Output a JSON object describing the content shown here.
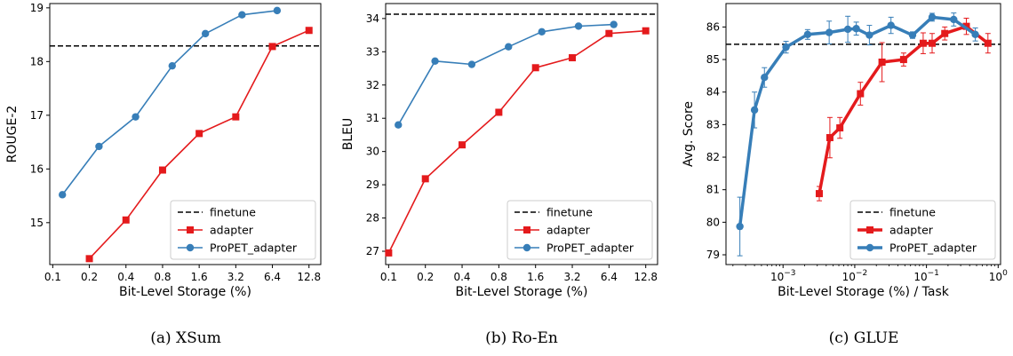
{
  "colors": {
    "finetune": "#000000",
    "adapter": "#e41a1c",
    "propet": "#377eb8"
  },
  "chart_data": [
    {
      "type": "line",
      "caption": "(a) XSum",
      "xlabel": "Bit-Level Storage (%)",
      "ylabel": "ROUGE-2",
      "xscale": "log2",
      "xlim": [
        0.0945,
        16.0
      ],
      "ylim": [
        14.22,
        19.08
      ],
      "xticks": [
        0.1,
        0.2,
        0.4,
        0.8,
        1.6,
        3.2,
        6.4,
        12.8
      ],
      "xtick_labels": [
        "0.1",
        "0.2",
        "0.4",
        "0.8",
        "1.6",
        "3.2",
        "6.4",
        "12.8"
      ],
      "yticks": [
        15,
        16,
        17,
        18,
        19
      ],
      "ytick_labels": [
        "15",
        "16",
        "17",
        "18",
        "19"
      ],
      "hline": {
        "name": "finetune",
        "y": 18.29
      },
      "series": [
        {
          "name": "adapter",
          "marker": "square",
          "thick": false,
          "x": [
            0.2,
            0.4,
            0.8,
            1.6,
            3.2,
            6.4,
            12.8
          ],
          "y": [
            14.33,
            15.05,
            15.98,
            16.66,
            16.97,
            18.28,
            18.58
          ]
        },
        {
          "name": "ProPET_adapter",
          "marker": "circle",
          "thick": false,
          "x": [
            0.12,
            0.24,
            0.48,
            0.96,
            1.8,
            3.6,
            7.0
          ],
          "y": [
            15.52,
            16.42,
            16.97,
            17.92,
            18.52,
            18.87,
            18.95
          ]
        }
      ],
      "legend": {
        "placement": "lower-right",
        "entries": [
          "finetune",
          "adapter",
          "ProPET_adapter"
        ]
      }
    },
    {
      "type": "line",
      "caption": "(b) Ro-En",
      "xlabel": "Bit-Level Storage (%)",
      "ylabel": "BLEU",
      "xscale": "log2",
      "xlim": [
        0.0945,
        16.0
      ],
      "ylim": [
        26.6,
        34.45
      ],
      "xticks": [
        0.1,
        0.2,
        0.4,
        0.8,
        1.6,
        3.2,
        6.4,
        12.8
      ],
      "xtick_labels": [
        "0.1",
        "0.2",
        "0.4",
        "0.8",
        "1.6",
        "3.2",
        "6.4",
        "12.8"
      ],
      "yticks": [
        27,
        28,
        29,
        30,
        31,
        32,
        33,
        34
      ],
      "ytick_labels": [
        "27",
        "28",
        "29",
        "30",
        "31",
        "32",
        "33",
        "34"
      ],
      "hline": {
        "name": "finetune",
        "y": 34.13
      },
      "series": [
        {
          "name": "adapter",
          "marker": "square",
          "thick": false,
          "x": [
            0.1,
            0.2,
            0.4,
            0.8,
            1.6,
            3.2,
            6.4,
            12.8
          ],
          "y": [
            26.95,
            29.18,
            30.2,
            31.18,
            32.52,
            32.82,
            33.55,
            33.63
          ]
        },
        {
          "name": "ProPET_adapter",
          "marker": "circle",
          "thick": false,
          "x": [
            0.12,
            0.24,
            0.48,
            0.96,
            1.8,
            3.6,
            7.0
          ],
          "y": [
            30.8,
            32.72,
            32.62,
            33.15,
            33.6,
            33.77,
            33.82
          ]
        }
      ],
      "legend": {
        "placement": "lower-right",
        "entries": [
          "finetune",
          "adapter",
          "ProPET_adapter"
        ]
      }
    },
    {
      "type": "line",
      "caption": "(c) GLUE",
      "xlabel": "Bit-Level Storage (%) / Task",
      "ylabel": "Avg. Score",
      "xscale": "log10",
      "xlim": [
        0.00016,
        1.08
      ],
      "ylim": [
        78.7,
        86.72
      ],
      "xticks": [
        0.001,
        0.01,
        0.1,
        1
      ],
      "xtick_labels": [
        "10",
        "10",
        "10",
        "10"
      ],
      "xtick_exponents": [
        "−3",
        "−2",
        "−1",
        "0"
      ],
      "yticks": [
        79,
        80,
        81,
        82,
        83,
        84,
        85,
        86
      ],
      "ytick_labels": [
        "79",
        "80",
        "81",
        "82",
        "83",
        "84",
        "85",
        "86"
      ],
      "hline": {
        "name": "finetune",
        "y": 85.47
      },
      "series": [
        {
          "name": "adapter",
          "marker": "square",
          "thick": true,
          "x": [
            0.0032,
            0.0045,
            0.0062,
            0.012,
            0.024,
            0.048,
            0.09,
            0.12,
            0.18,
            0.36,
            0.72
          ],
          "y": [
            80.88,
            82.6,
            82.9,
            83.95,
            84.92,
            85.0,
            85.5,
            85.5,
            85.8,
            86.02,
            85.5
          ],
          "err": [
            0.22,
            0.62,
            0.32,
            0.35,
            0.6,
            0.2,
            0.32,
            0.3,
            0.2,
            0.25,
            0.3
          ]
        },
        {
          "name": "ProPET_adapter",
          "marker": "circle",
          "thick": true,
          "x": [
            0.00025,
            0.0004,
            0.00055,
            0.0011,
            0.0022,
            0.0044,
            0.008,
            0.0105,
            0.016,
            0.032,
            0.064,
            0.12,
            0.24,
            0.48
          ],
          "y": [
            79.87,
            83.45,
            84.45,
            85.38,
            85.77,
            85.83,
            85.93,
            85.95,
            85.75,
            86.05,
            85.75,
            86.3,
            86.23,
            85.77
          ],
          "err": [
            0.9,
            0.55,
            0.3,
            0.18,
            0.15,
            0.35,
            0.4,
            0.2,
            0.3,
            0.25,
            0.1,
            0.12,
            0.2,
            0.2
          ]
        }
      ],
      "legend": {
        "placement": "lower-right",
        "entries": [
          "finetune",
          "adapter",
          "ProPET_adapter"
        ]
      }
    }
  ]
}
